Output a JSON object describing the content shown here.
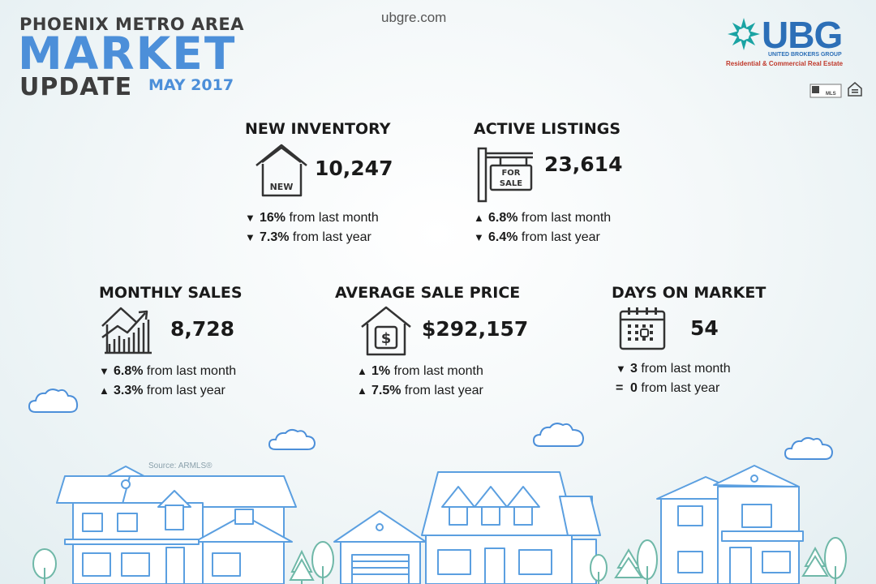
{
  "header": {
    "line1": "PHOENIX METRO AREA",
    "line2": "MARKET",
    "line3": "UPDATE",
    "date": "MAY 2017",
    "website": "ubgre.com"
  },
  "logo": {
    "name": "UBG",
    "subtitle": "UNITED BROKERS GROUP",
    "tagline": "Residential & Commercial Real Estate",
    "badges": [
      "mls-icon",
      "equal-housing-icon"
    ]
  },
  "stats": [
    {
      "title": "NEW INVENTORY",
      "icon": "house-new-icon",
      "value": "10,247",
      "changes": [
        {
          "dir": "down",
          "symbol": "▼",
          "value": "16%",
          "text": "from last month"
        },
        {
          "dir": "down",
          "symbol": "▼",
          "value": "7.3%",
          "text": "from last year"
        }
      ]
    },
    {
      "title": "ACTIVE LISTINGS",
      "icon": "for-sale-sign-icon",
      "value": "23,614",
      "changes": [
        {
          "dir": "up",
          "symbol": "▲",
          "value": "6.8%",
          "text": "from last month"
        },
        {
          "dir": "down",
          "symbol": "▼",
          "value": "6.4%",
          "text": "from last year"
        }
      ]
    },
    {
      "title": "MONTHLY SALES",
      "icon": "house-chart-icon",
      "value": "8,728",
      "changes": [
        {
          "dir": "down",
          "symbol": "▼",
          "value": "6.8%",
          "text": "from last month"
        },
        {
          "dir": "up",
          "symbol": "▲",
          "value": "3.3%",
          "text": "from last year"
        }
      ]
    },
    {
      "title": "AVERAGE SALE PRICE",
      "icon": "house-dollar-icon",
      "value": "$292,157",
      "changes": [
        {
          "dir": "up",
          "symbol": "▲",
          "value": "1%",
          "text": "from last month"
        },
        {
          "dir": "up",
          "symbol": "▲",
          "value": "7.5%",
          "text": "from last year"
        }
      ]
    },
    {
      "title": "DAYS ON MARKET",
      "icon": "calendar-icon",
      "value": "54",
      "changes": [
        {
          "dir": "down",
          "symbol": "▼",
          "value": "3",
          "text": "from last month"
        },
        {
          "dir": "equal",
          "symbol": "=",
          "value": "0",
          "text": "from last year"
        }
      ]
    }
  ],
  "source": "Source: ARMLS®",
  "colors": {
    "accent": "#4c8fd9",
    "dark_text": "#3d3d3d",
    "illustration": "#5b9fe0",
    "tree": "#6fb8a8",
    "logo_blue": "#2c6fb7",
    "logo_red": "#c0392b",
    "logo_teal": "#1aa3a3"
  }
}
